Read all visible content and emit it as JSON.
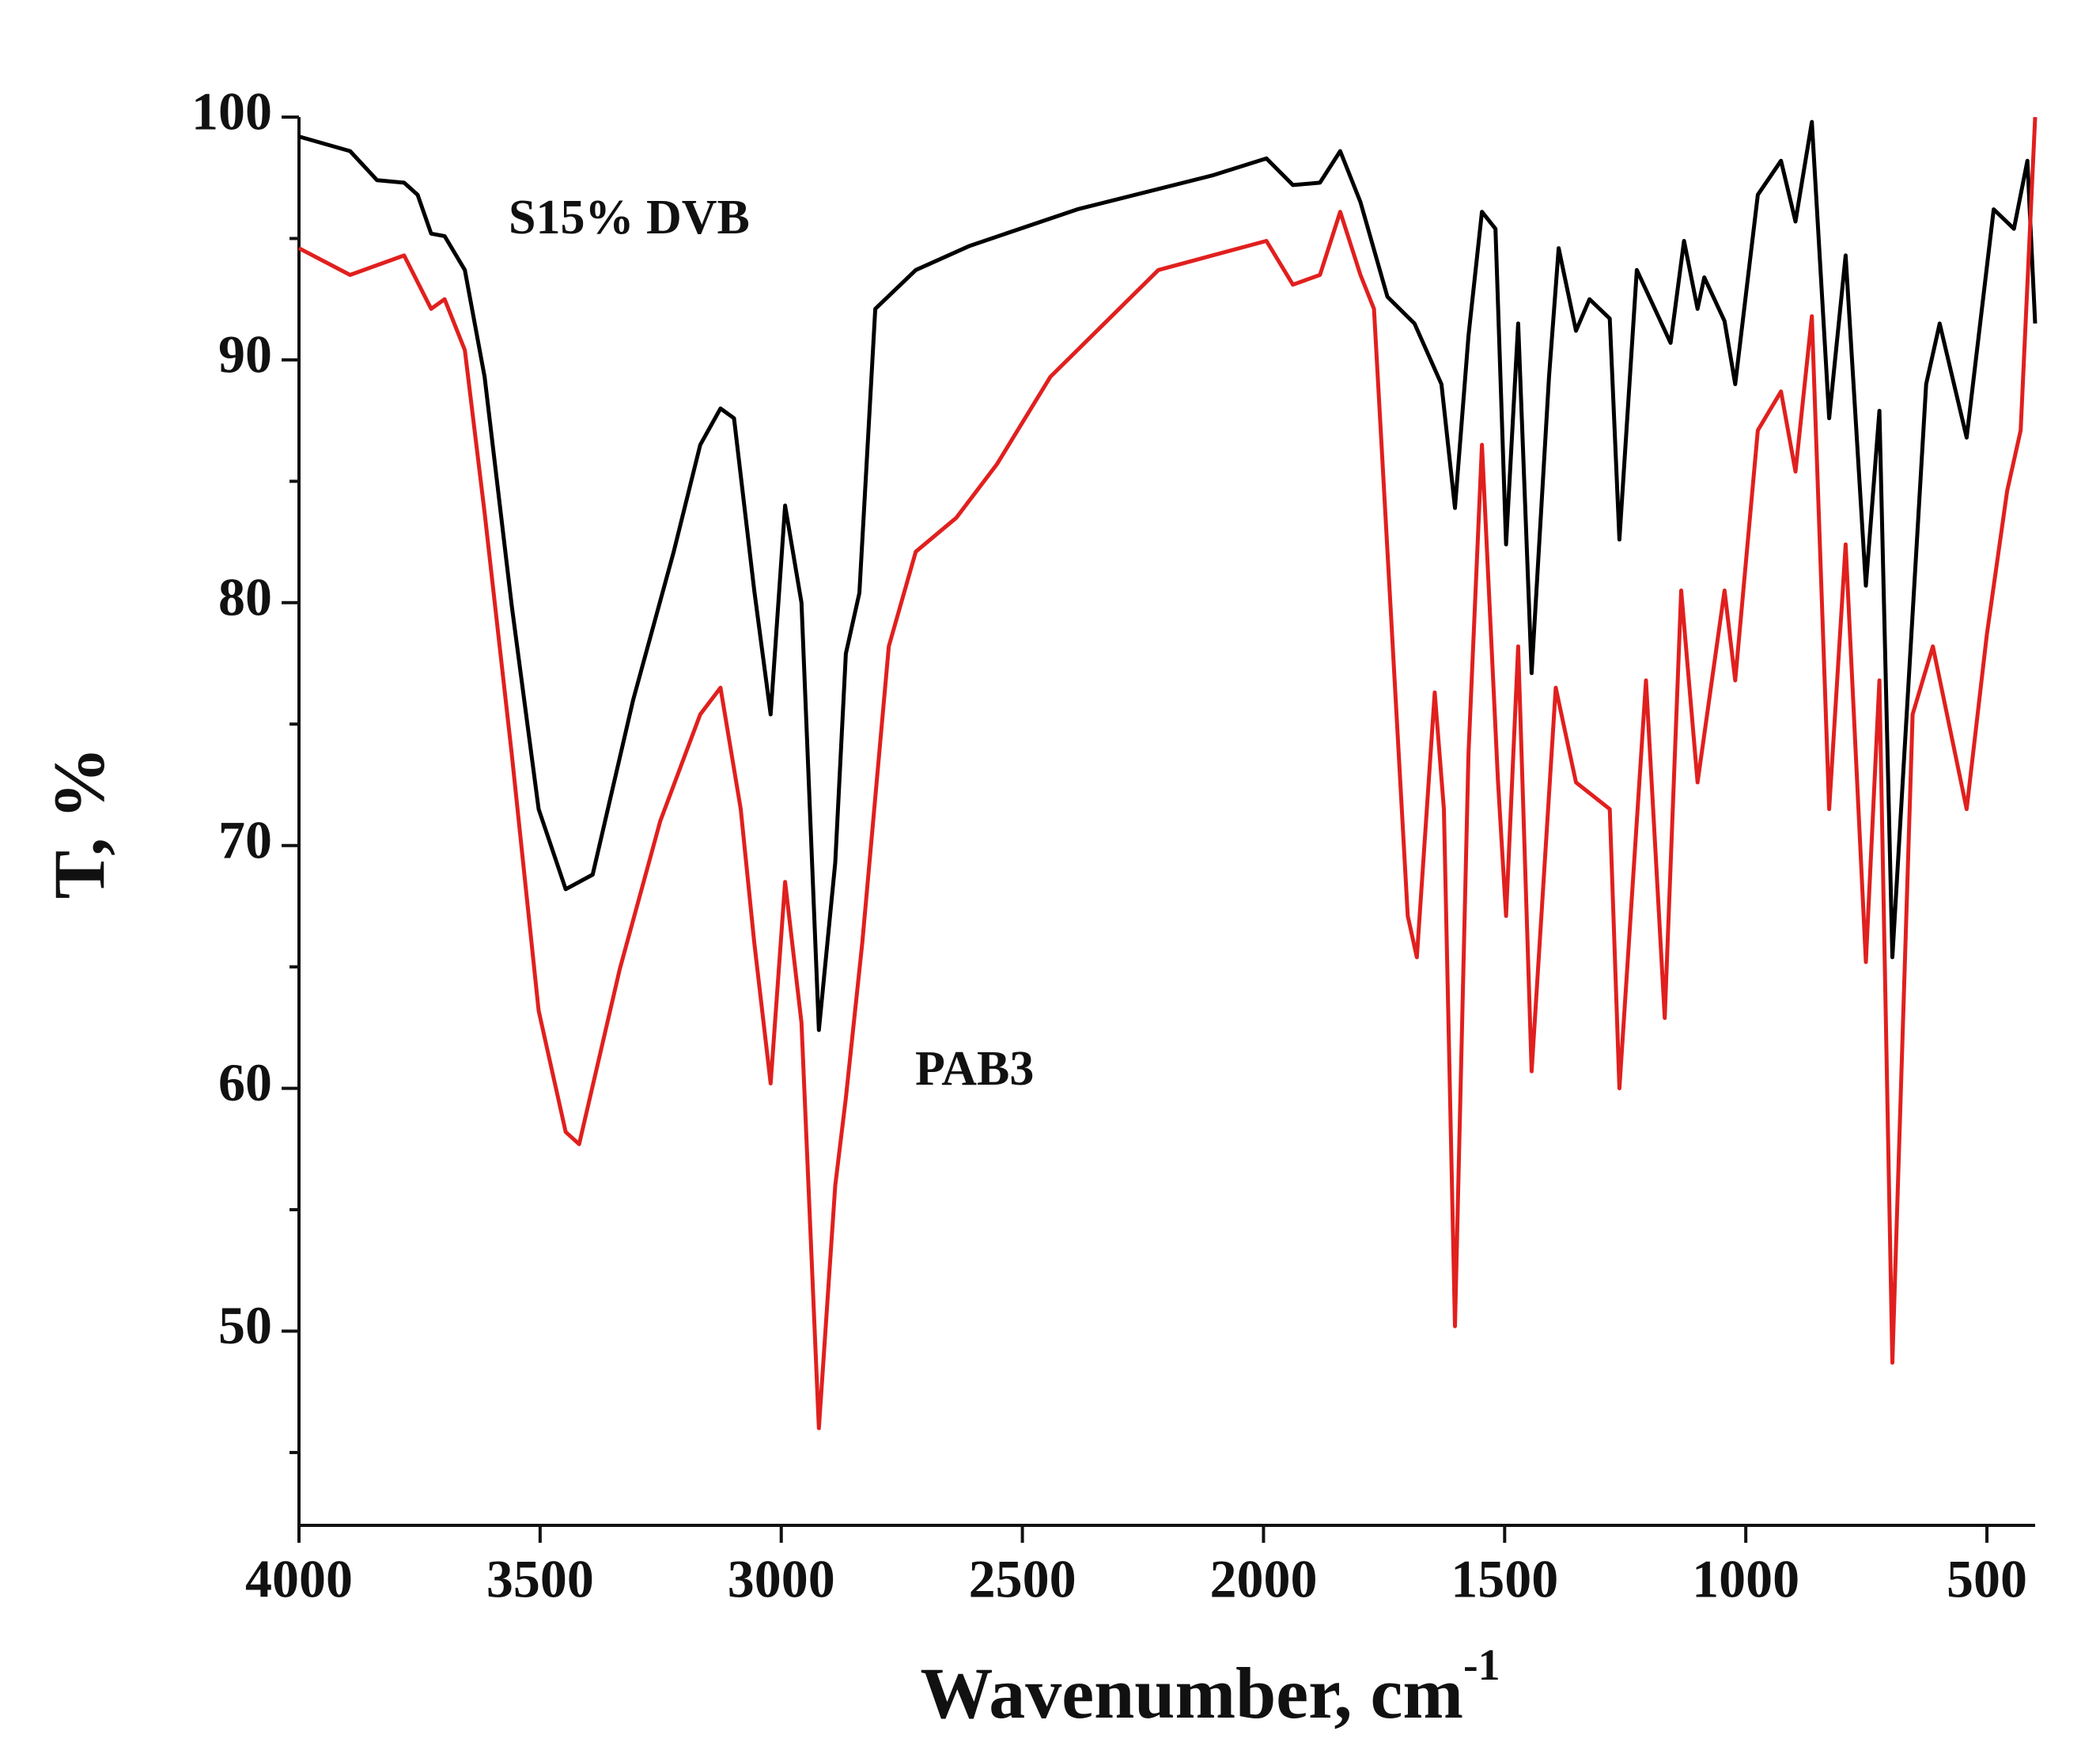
{
  "chart_data": {
    "type": "line",
    "xlabel": "Wavenumber, cm",
    "xlabel_sup": "-1",
    "ylabel": "T, %",
    "xlim": [
      4000,
      400
    ],
    "xticks": [
      4000,
      3500,
      3000,
      2500,
      2000,
      1500,
      1000,
      500
    ],
    "ylim": [
      42,
      100
    ],
    "yticks": [
      50,
      60,
      70,
      80,
      90,
      100
    ],
    "yminorticks": [
      45,
      55,
      65,
      75,
      85,
      95
    ],
    "series": [
      {
        "name": "S15% DVB",
        "color": "#000000",
        "x": [
          4000,
          3894,
          3838,
          3782,
          3754,
          3726,
          3698,
          3656,
          3615,
          3559,
          3503,
          3447,
          3391,
          3307,
          3223,
          3168,
          3126,
          3098,
          3056,
          3022,
          2992,
          2958,
          2922,
          2888,
          2866,
          2838,
          2805,
          2721,
          2609,
          2386,
          2106,
          1994,
          1939,
          1883,
          1841,
          1799,
          1743,
          1687,
          1631,
          1603,
          1575,
          1547,
          1519,
          1497,
          1472,
          1444,
          1408,
          1388,
          1352,
          1324,
          1282,
          1262,
          1226,
          1156,
          1128,
          1100,
          1086,
          1044,
          1022,
          975,
          927,
          897,
          863,
          827,
          793,
          751,
          723,
          696,
          626,
          598,
          542,
          486,
          444,
          416,
          400
        ],
        "values": [
          99.2,
          98.6,
          97.4,
          97.3,
          96.8,
          95.2,
          95.1,
          93.7,
          89.3,
          79.9,
          71.5,
          68.2,
          68.8,
          76.0,
          82.1,
          86.5,
          88.0,
          87.6,
          80.5,
          75.4,
          84.0,
          80.0,
          62.4,
          69.3,
          77.9,
          80.4,
          92.1,
          93.7,
          94.7,
          96.2,
          97.6,
          98.3,
          97.2,
          97.3,
          98.6,
          96.5,
          92.6,
          91.5,
          89.0,
          83.9,
          91.0,
          96.1,
          95.4,
          82.4,
          91.5,
          77.1,
          89.3,
          94.6,
          91.2,
          92.5,
          91.7,
          82.6,
          93.7,
          90.7,
          94.9,
          92.1,
          93.4,
          91.6,
          89.0,
          96.8,
          98.2,
          95.7,
          99.8,
          87.6,
          94.3,
          80.7,
          87.9,
          65.4,
          89.0,
          91.5,
          86.8,
          96.2,
          95.4,
          98.2,
          91.5
        ]
      },
      {
        "name": "PAB3",
        "color": "#e0201e",
        "x": [
          4000,
          3894,
          3782,
          3726,
          3698,
          3656,
          3615,
          3559,
          3503,
          3447,
          3419,
          3335,
          3251,
          3168,
          3126,
          3084,
          3056,
          3022,
          2992,
          2958,
          2922,
          2888,
          2866,
          2832,
          2777,
          2721,
          2637,
          2553,
          2442,
          2218,
          1994,
          1939,
          1883,
          1841,
          1799,
          1771,
          1729,
          1701,
          1682,
          1645,
          1626,
          1603,
          1575,
          1547,
          1514,
          1497,
          1472,
          1444,
          1394,
          1352,
          1282,
          1262,
          1207,
          1168,
          1134,
          1100,
          1044,
          1022,
          975,
          927,
          897,
          863,
          827,
          793,
          751,
          723,
          696,
          654,
          612,
          542,
          500,
          458,
          430,
          400
        ],
        "values": [
          94.6,
          93.5,
          94.3,
          92.1,
          92.5,
          90.4,
          83.7,
          73.8,
          63.2,
          58.2,
          57.7,
          64.9,
          71.0,
          75.4,
          76.5,
          71.5,
          66.0,
          60.2,
          68.5,
          62.7,
          46.0,
          56.0,
          59.6,
          66.0,
          78.2,
          82.1,
          83.5,
          85.7,
          89.3,
          93.7,
          94.9,
          93.1,
          93.5,
          96.1,
          93.5,
          92.1,
          77.1,
          67.1,
          65.4,
          76.3,
          71.5,
          50.2,
          73.8,
          86.5,
          72.7,
          67.1,
          78.2,
          60.7,
          76.5,
          72.6,
          71.5,
          60.0,
          76.8,
          62.9,
          80.5,
          72.6,
          80.5,
          76.8,
          87.1,
          88.7,
          85.4,
          91.8,
          71.5,
          82.4,
          65.2,
          76.8,
          48.7,
          75.4,
          78.2,
          71.5,
          78.7,
          84.6,
          87.1,
          100
        ]
      }
    ]
  }
}
